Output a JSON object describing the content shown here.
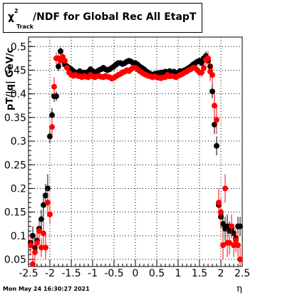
{
  "chart_data": {
    "type": "scatter",
    "title": {
      "chi": "χ",
      "sup": "2",
      "sub": "Track",
      "rest": "/NDF for Global Rec All EtapT"
    },
    "xlabel": "η",
    "ylabel": "pT/|q| GeV/c",
    "xlim": [
      -2.5,
      2.5
    ],
    "ylim": [
      0.035,
      0.52
    ],
    "x_ticks": [
      "-2.5",
      "-2",
      "-1.5",
      "-1",
      "-0.5",
      "0",
      "0.5",
      "1",
      "1.5",
      "2",
      "2.5"
    ],
    "y_ticks": [
      "0.05",
      "0.1",
      "0.15",
      "0.2",
      "0.25",
      "0.3",
      "0.35",
      "0.4",
      "0.45",
      "0.5"
    ],
    "grid": true,
    "series": [
      {
        "color": "#000000",
        "x": [
          -2.45,
          -2.4,
          -2.35,
          -2.3,
          -2.25,
          -2.2,
          -2.15,
          -2.1,
          -2.05,
          -2.0,
          -1.95,
          -1.9,
          -1.85,
          -1.8,
          -1.75,
          -1.7,
          -1.65,
          -1.6,
          -1.55,
          -1.5,
          -1.45,
          -1.4,
          -1.35,
          -1.3,
          -1.25,
          -1.2,
          -1.15,
          -1.1,
          -1.05,
          -1.0,
          -0.95,
          -0.9,
          -0.85,
          -0.8,
          -0.75,
          -0.7,
          -0.65,
          -0.6,
          -0.55,
          -0.5,
          -0.45,
          -0.4,
          -0.35,
          -0.3,
          -0.25,
          -0.2,
          -0.15,
          -0.1,
          -0.05,
          0.0,
          0.05,
          0.1,
          0.15,
          0.2,
          0.25,
          0.3,
          0.35,
          0.4,
          0.45,
          0.5,
          0.55,
          0.6,
          0.65,
          0.7,
          0.75,
          0.8,
          0.85,
          0.9,
          0.95,
          1.0,
          1.05,
          1.1,
          1.15,
          1.2,
          1.25,
          1.3,
          1.35,
          1.4,
          1.45,
          1.5,
          1.55,
          1.6,
          1.65,
          1.7,
          1.75,
          1.8,
          1.85,
          1.9,
          1.95,
          2.0,
          2.05,
          2.1,
          2.15,
          2.2,
          2.25,
          2.3,
          2.35,
          2.4,
          2.45
        ],
        "y": [
          0.085,
          0.1,
          0.075,
          0.09,
          0.115,
          0.135,
          0.165,
          0.185,
          0.2,
          0.31,
          0.355,
          0.395,
          0.395,
          0.458,
          0.49,
          0.475,
          0.462,
          0.458,
          0.455,
          0.452,
          0.448,
          0.445,
          0.445,
          0.448,
          0.442,
          0.445,
          0.443,
          0.447,
          0.452,
          0.448,
          0.445,
          0.447,
          0.45,
          0.452,
          0.455,
          0.452,
          0.45,
          0.452,
          0.455,
          0.458,
          0.462,
          0.465,
          0.465,
          0.463,
          0.465,
          0.468,
          0.47,
          0.468,
          0.465,
          0.465,
          0.462,
          0.458,
          0.455,
          0.452,
          0.448,
          0.445,
          0.442,
          0.44,
          0.442,
          0.443,
          0.444,
          0.445,
          0.445,
          0.447,
          0.443,
          0.448,
          0.445,
          0.447,
          0.442,
          0.445,
          0.448,
          0.447,
          0.45,
          0.452,
          0.455,
          0.458,
          0.462,
          0.465,
          0.468,
          0.47,
          0.465,
          0.475,
          0.48,
          0.47,
          0.458,
          0.405,
          0.335,
          0.29,
          0.165,
          0.14,
          0.125,
          0.115,
          0.12,
          0.11,
          0.115,
          0.105,
          0.095,
          0.12,
          0.12
        ],
        "err": [
          0.02,
          0.02,
          0.02,
          0.02,
          0.02,
          0.02,
          0.025,
          0.025,
          0.03,
          0.015,
          0.015,
          0.012,
          0.01,
          0.01,
          0.008,
          0.006,
          0.005,
          0.005,
          0.004,
          0.004,
          0.004,
          0.004,
          0.004,
          0.004,
          0.004,
          0.004,
          0.004,
          0.004,
          0.004,
          0.004,
          0.004,
          0.004,
          0.004,
          0.004,
          0.004,
          0.004,
          0.004,
          0.004,
          0.004,
          0.004,
          0.004,
          0.004,
          0.004,
          0.004,
          0.004,
          0.004,
          0.004,
          0.004,
          0.004,
          0.004,
          0.004,
          0.004,
          0.004,
          0.004,
          0.004,
          0.004,
          0.004,
          0.004,
          0.004,
          0.004,
          0.004,
          0.004,
          0.004,
          0.004,
          0.004,
          0.004,
          0.004,
          0.004,
          0.004,
          0.004,
          0.004,
          0.004,
          0.004,
          0.004,
          0.004,
          0.004,
          0.005,
          0.005,
          0.005,
          0.006,
          0.006,
          0.008,
          0.01,
          0.01,
          0.012,
          0.015,
          0.02,
          0.02,
          0.025,
          0.025,
          0.025,
          0.025,
          0.025,
          0.02,
          0.02,
          0.02,
          0.02,
          0.02,
          0.02
        ]
      },
      {
        "color": "#ff0000",
        "x": [
          -2.45,
          -2.4,
          -2.35,
          -2.3,
          -2.25,
          -2.2,
          -2.15,
          -2.1,
          -2.05,
          -2.0,
          -1.95,
          -1.9,
          -1.85,
          -1.8,
          -1.75,
          -1.7,
          -1.65,
          -1.6,
          -1.55,
          -1.5,
          -1.45,
          -1.4,
          -1.35,
          -1.3,
          -1.25,
          -1.2,
          -1.15,
          -1.1,
          -1.05,
          -1.0,
          -0.95,
          -0.9,
          -0.85,
          -0.8,
          -0.75,
          -0.7,
          -0.65,
          -0.6,
          -0.55,
          -0.5,
          -0.45,
          -0.4,
          -0.35,
          -0.3,
          -0.25,
          -0.2,
          -0.15,
          -0.1,
          -0.05,
          0.0,
          0.05,
          0.1,
          0.15,
          0.2,
          0.25,
          0.3,
          0.35,
          0.4,
          0.45,
          0.5,
          0.55,
          0.6,
          0.65,
          0.7,
          0.75,
          0.8,
          0.85,
          0.9,
          0.95,
          1.0,
          1.05,
          1.1,
          1.15,
          1.2,
          1.25,
          1.3,
          1.35,
          1.4,
          1.45,
          1.5,
          1.55,
          1.6,
          1.65,
          1.7,
          1.75,
          1.8,
          1.85,
          1.9,
          1.95,
          2.0,
          2.05,
          2.1,
          2.15,
          2.2,
          2.25,
          2.3,
          2.35,
          2.4,
          2.45
        ],
        "y": [
          0.08,
          0.04,
          0.065,
          0.085,
          0.11,
          0.075,
          0.105,
          0.075,
          0.17,
          0.145,
          0.33,
          0.415,
          0.475,
          0.475,
          0.47,
          0.478,
          0.47,
          0.455,
          0.445,
          0.44,
          0.438,
          0.44,
          0.438,
          0.437,
          0.435,
          0.438,
          0.436,
          0.435,
          0.44,
          0.437,
          0.435,
          0.437,
          0.438,
          0.436,
          0.435,
          0.438,
          0.436,
          0.435,
          0.432,
          0.434,
          0.437,
          0.44,
          0.442,
          0.445,
          0.447,
          0.45,
          0.448,
          0.452,
          0.455,
          0.455,
          0.452,
          0.448,
          0.445,
          0.442,
          0.44,
          0.438,
          0.437,
          0.435,
          0.437,
          0.435,
          0.434,
          0.433,
          0.435,
          0.435,
          0.44,
          0.437,
          0.438,
          0.437,
          0.435,
          0.438,
          0.44,
          0.442,
          0.445,
          0.447,
          0.45,
          0.452,
          0.455,
          0.455,
          0.45,
          0.445,
          0.445,
          0.455,
          0.472,
          0.475,
          0.447,
          0.44,
          0.375,
          0.345,
          0.17,
          0.15,
          0.08,
          0.2,
          0.085,
          0.085,
          0.12,
          0.08,
          0.09,
          0.08,
          0.05
        ],
        "err": [
          0.02,
          0.02,
          0.02,
          0.02,
          0.02,
          0.02,
          0.025,
          0.025,
          0.03,
          0.02,
          0.02,
          0.02,
          0.012,
          0.01,
          0.01,
          0.008,
          0.006,
          0.006,
          0.005,
          0.005,
          0.005,
          0.005,
          0.005,
          0.005,
          0.005,
          0.005,
          0.005,
          0.005,
          0.005,
          0.005,
          0.005,
          0.005,
          0.005,
          0.005,
          0.005,
          0.005,
          0.005,
          0.005,
          0.005,
          0.005,
          0.005,
          0.005,
          0.005,
          0.005,
          0.005,
          0.005,
          0.005,
          0.005,
          0.005,
          0.005,
          0.005,
          0.005,
          0.005,
          0.005,
          0.005,
          0.005,
          0.005,
          0.005,
          0.005,
          0.005,
          0.005,
          0.005,
          0.005,
          0.005,
          0.005,
          0.005,
          0.005,
          0.005,
          0.005,
          0.005,
          0.005,
          0.005,
          0.005,
          0.005,
          0.005,
          0.005,
          0.006,
          0.006,
          0.006,
          0.008,
          0.01,
          0.01,
          0.012,
          0.015,
          0.02,
          0.02,
          0.025,
          0.03,
          0.03,
          0.03,
          0.03,
          0.03,
          0.03,
          0.025,
          0.025,
          0.025,
          0.025,
          0.025,
          0.025
        ]
      }
    ]
  },
  "footer": {
    "timestamp": "Mon May 24 16:30:27 2021"
  }
}
